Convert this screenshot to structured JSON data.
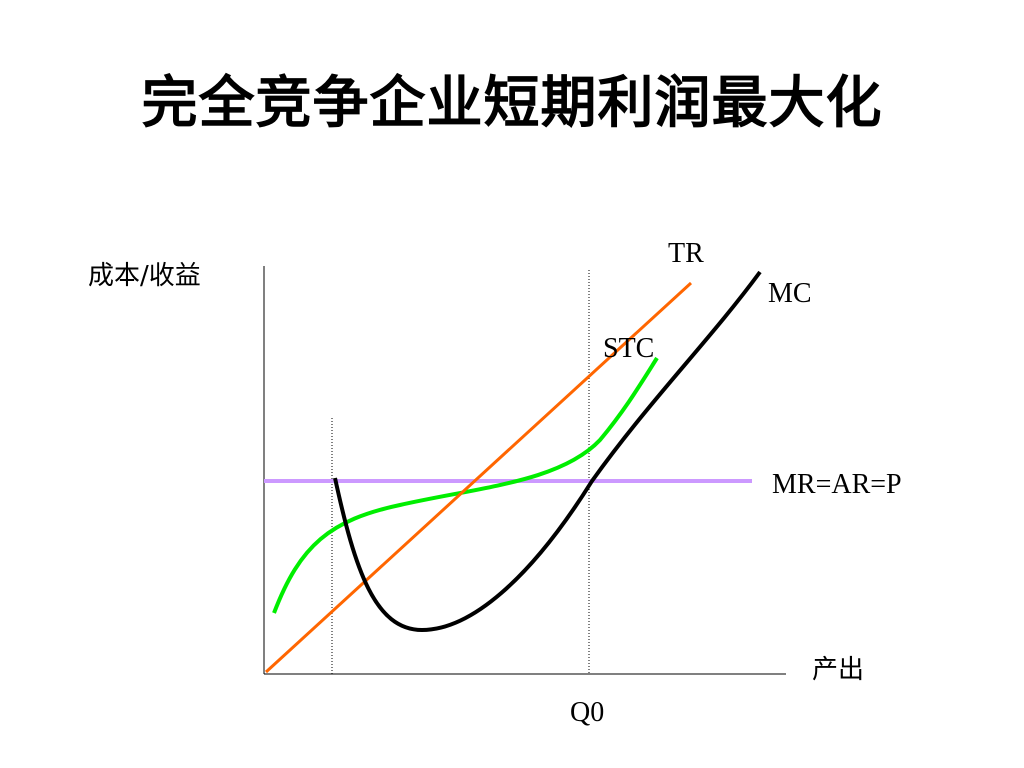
{
  "slide": {
    "title": "完全竞争企业短期利润最大化"
  },
  "diagram": {
    "y_axis_label": "成本/收益",
    "x_axis_label": "产出",
    "x_tick_label": "Q0",
    "curves": {
      "tr": {
        "label": "TR",
        "color": "#ff6600"
      },
      "mc": {
        "label": "MC",
        "color": "#000000"
      },
      "stc": {
        "label": "STC",
        "color": "#00ee00"
      },
      "mr": {
        "label": "MR=AR=P",
        "color": "#cc99ff"
      }
    }
  }
}
